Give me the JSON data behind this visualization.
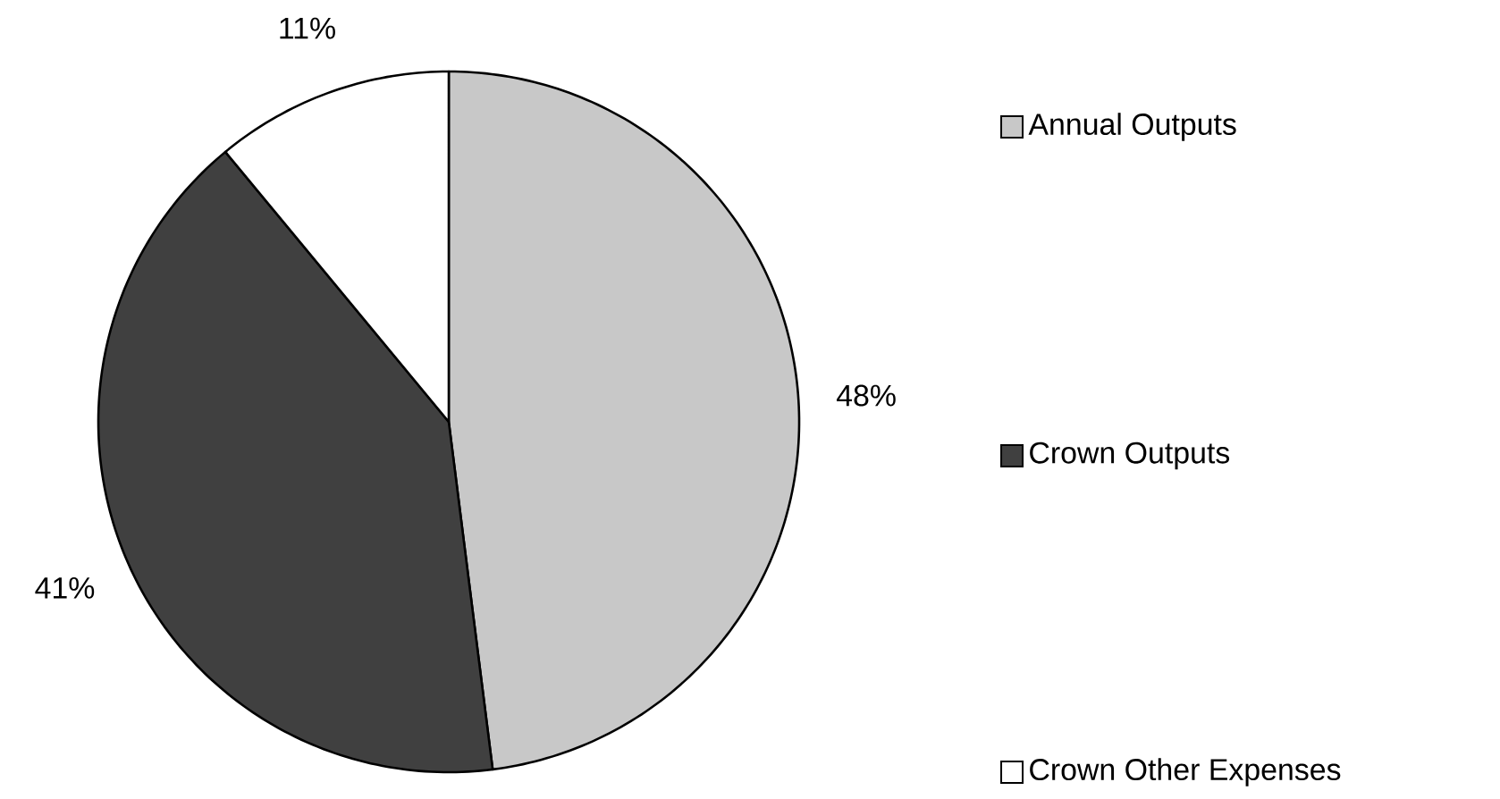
{
  "chart_data": {
    "type": "pie",
    "categories": [
      "Annual Outputs",
      "Crown Outputs",
      "Crown Other Expenses"
    ],
    "values": [
      48,
      41,
      11
    ],
    "colors": [
      "#c8c8c8",
      "#404040",
      "#ffffff"
    ],
    "value_labels": [
      "48%",
      "41%",
      "11%"
    ],
    "legend": "right"
  }
}
